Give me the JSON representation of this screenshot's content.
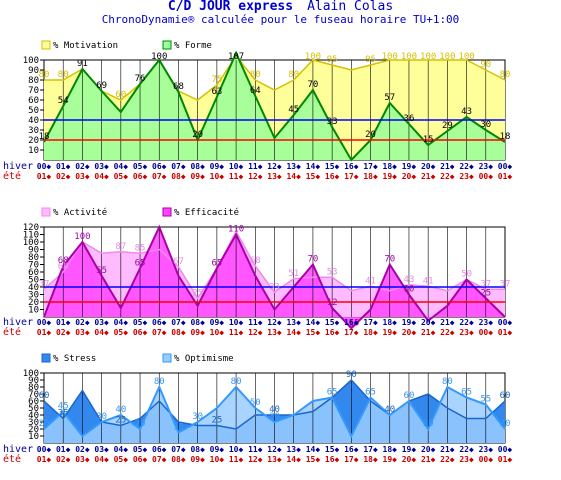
{
  "header": {
    "title": "C/D JOUR express",
    "author": "Alain Colas",
    "subtitle": "ChronoDynamie® calculée pour le fuseau horaire TU+1:00"
  },
  "row_labels": {
    "hiver": "hiver",
    "ete": "été"
  },
  "hours_hiver": [
    "00",
    "01",
    "02",
    "03",
    "04",
    "05",
    "06",
    "07",
    "08",
    "09",
    "10",
    "11",
    "12",
    "13",
    "14",
    "15",
    "16",
    "17",
    "18",
    "19",
    "20",
    "21",
    "22",
    "23",
    "00"
  ],
  "hours_ete": [
    "01",
    "02",
    "03",
    "04",
    "05",
    "06",
    "07",
    "08",
    "09",
    "10",
    "11",
    "12",
    "13",
    "14",
    "15",
    "16",
    "17",
    "18",
    "19",
    "20",
    "21",
    "22",
    "23",
    "00",
    "01"
  ],
  "colors": {
    "motivation_fill": "#ffff99",
    "motivation_line": "#d4c200",
    "forme_fill": "#99ff99",
    "forme_line": "#008800",
    "activite_fill": "#ffbbff",
    "activite_line": "#ee88ee",
    "efficacite_fill": "#ff44ff",
    "efficacite_line": "#aa00aa",
    "stress_fill": "#3388ee",
    "stress_line": "#1a66cc",
    "optimisme_fill": "#99ccff",
    "optimisme_line": "#3399ff",
    "blue_ref": "#0000ff",
    "red_ref": "#ff0000",
    "hour_text_hiver": "#000099",
    "hour_text_ete": "#cc0000"
  },
  "chart_data": [
    {
      "type": "area",
      "ylim": [
        0,
        100
      ],
      "yticks": [
        10,
        20,
        30,
        40,
        50,
        60,
        70,
        80,
        90,
        100
      ],
      "reference_lines": [
        40,
        20
      ],
      "series": [
        {
          "name": "% Motivation",
          "values": [
            80,
            80,
            91,
            69,
            60,
            76,
            100,
            69,
            60,
            75,
            104,
            80,
            70,
            80,
            100,
            95,
            90,
            95,
            100,
            100,
            100,
            100,
            100,
            90,
            80
          ],
          "labels": [
            "80",
            "80",
            "",
            "",
            "60",
            "",
            "",
            "",
            "",
            "75",
            "",
            "80",
            "",
            "80",
            "100",
            "95",
            "",
            "95",
            "100",
            "100",
            "100",
            "100",
            "100",
            "90",
            "80"
          ]
        },
        {
          "name": "% Forme",
          "values": [
            18,
            54,
            91,
            69,
            48,
            76,
            100,
            68,
            20,
            63,
            107,
            64,
            22,
            45,
            70,
            33,
            0,
            20,
            57,
            36,
            15,
            29,
            43,
            30,
            18
          ],
          "labels": [
            "18",
            "54",
            "91",
            "69",
            "",
            "76",
            "100",
            "68",
            "20",
            "63",
            "107",
            "64",
            "",
            "45",
            "70",
            "33",
            "",
            "20",
            "57",
            "36",
            "15",
            "29",
            "43",
            "30",
            "18"
          ]
        }
      ]
    },
    {
      "type": "area",
      "ylim": [
        0,
        120
      ],
      "yticks": [
        10,
        20,
        30,
        40,
        50,
        60,
        70,
        80,
        90,
        100,
        110,
        120
      ],
      "reference_lines": [
        40,
        20
      ],
      "series": [
        {
          "name": "% Activité",
          "values": [
            37,
            60,
            100,
            85,
            87,
            85,
            90,
            67,
            25,
            65,
            114,
            68,
            33,
            51,
            53,
            53,
            35,
            41,
            35,
            43,
            41,
            35,
            50,
            37,
            37
          ],
          "labels": [
            "37",
            "60",
            "",
            "",
            "87",
            "85",
            "",
            "67",
            "25",
            "",
            "",
            "68",
            "33",
            "51",
            "",
            "53",
            "",
            "41",
            "",
            "43",
            "41",
            "",
            "50",
            "37",
            "37"
          ]
        },
        {
          "name": "% Efficacité",
          "values": [
            0,
            68,
            100,
            55,
            12,
            65,
            120,
            55,
            15,
            65,
            110,
            55,
            10,
            40,
            70,
            12,
            -15,
            10,
            70,
            30,
            -5,
            15,
            50,
            25,
            0
          ],
          "labels": [
            "",
            "68",
            "100",
            "55",
            "",
            "65",
            "",
            "",
            "",
            "65",
            "110",
            "",
            "",
            "",
            "70",
            "12",
            "-15",
            "",
            "70",
            "30",
            "",
            "",
            "",
            "25",
            ""
          ]
        }
      ]
    },
    {
      "type": "area",
      "ylim": [
        0,
        100
      ],
      "yticks": [
        10,
        20,
        30,
        40,
        50,
        60,
        70,
        80,
        90,
        100
      ],
      "reference_lines": [],
      "series": [
        {
          "name": "% Stress",
          "values": [
            60,
            35,
            75,
            30,
            25,
            35,
            60,
            30,
            25,
            25,
            20,
            40,
            40,
            40,
            45,
            65,
            90,
            60,
            40,
            60,
            70,
            50,
            35,
            35,
            60
          ],
          "labels": [
            "60",
            "35",
            "",
            "",
            "25",
            "",
            "",
            "",
            "",
            "25",
            "",
            "",
            "40",
            "",
            "",
            "",
            "90",
            "",
            "40",
            "",
            "",
            "",
            "",
            "",
            "60"
          ]
        },
        {
          "name": "% Optimisme",
          "values": [
            20,
            45,
            10,
            30,
            40,
            20,
            80,
            15,
            30,
            50,
            80,
            50,
            30,
            40,
            60,
            65,
            10,
            65,
            40,
            60,
            20,
            80,
            65,
            55,
            20
          ],
          "labels": [
            "20",
            "45",
            "",
            "30",
            "40",
            "20",
            "80",
            "15",
            "30",
            "",
            "80",
            "50",
            "30",
            "",
            "",
            "65",
            "",
            "65",
            "",
            "60",
            "20",
            "80",
            "65",
            "55",
            "20"
          ]
        }
      ]
    }
  ]
}
